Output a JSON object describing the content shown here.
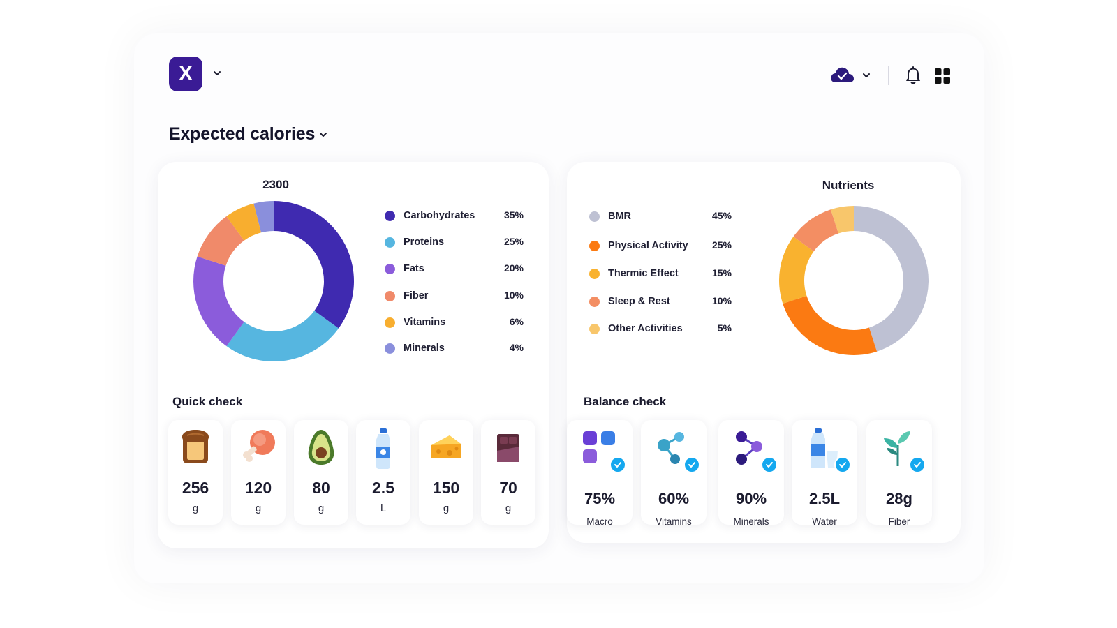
{
  "header": {
    "logo_letter": "X",
    "icons": [
      "chevron-down-icon",
      "cloud-check-icon",
      "bell-icon",
      "grid-icon"
    ]
  },
  "page_title": "Expected calories",
  "calories": {
    "total": "2300",
    "legend": [
      {
        "name": "Carbohydrates",
        "pct": "35%",
        "color": "#3f2ab0"
      },
      {
        "name": "Proteins",
        "pct": "25%",
        "color": "#56b6e0"
      },
      {
        "name": "Fats",
        "pct": "20%",
        "color": "#8b5cdb"
      },
      {
        "name": "Fiber",
        "pct": "10%",
        "color": "#f08a6a"
      },
      {
        "name": "Vitamins",
        "pct": "6%",
        "color": "#f8ae2f"
      },
      {
        "name": "Minerals",
        "pct": "4%",
        "color": "#8a8fdc"
      }
    ]
  },
  "nutrients": {
    "title": "Nutrients",
    "legend": [
      {
        "name": "BMR",
        "pct": "45%",
        "color": "#bec1d3"
      },
      {
        "name": "Physical Activity",
        "pct": "25%",
        "color": "#fb7a12"
      },
      {
        "name": "Thermic Effect",
        "pct": "15%",
        "color": "#f9b22f"
      },
      {
        "name": "Sleep & Rest",
        "pct": "10%",
        "color": "#f38e63"
      },
      {
        "name": "Other Activities",
        "pct": "5%",
        "color": "#f8c66b"
      }
    ]
  },
  "quick_check": {
    "title": "Quick check",
    "items": [
      {
        "value": "256",
        "unit": "g",
        "icon": "bread-icon"
      },
      {
        "value": "120",
        "unit": "g",
        "icon": "chicken-leg-icon"
      },
      {
        "value": "80",
        "unit": "g",
        "icon": "avocado-icon"
      },
      {
        "value": "2.5",
        "unit": "L",
        "icon": "water-bottle-icon"
      },
      {
        "value": "150",
        "unit": "g",
        "icon": "cheese-icon"
      },
      {
        "value": "70",
        "unit": "g",
        "icon": "chocolate-icon"
      }
    ]
  },
  "balance_check": {
    "title": "Balance check",
    "items": [
      {
        "value": "75%",
        "label": "Macro",
        "icon": "macro-blocks-icon"
      },
      {
        "value": "60%",
        "label": "Vitamins",
        "icon": "molecule-icon"
      },
      {
        "value": "90%",
        "label": "Minerals",
        "icon": "molecule-purple-icon"
      },
      {
        "value": "2.5L",
        "label": "Water",
        "icon": "water-glass-icon"
      },
      {
        "value": "28g",
        "label": "Fiber",
        "icon": "sprout-icon"
      }
    ]
  },
  "chart_data": [
    {
      "type": "pie",
      "title": "2300",
      "categories": [
        "Carbohydrates",
        "Proteins",
        "Fats",
        "Fiber",
        "Vitamins",
        "Minerals"
      ],
      "values": [
        35,
        25,
        20,
        10,
        6,
        4
      ]
    },
    {
      "type": "pie",
      "title": "Nutrients",
      "categories": [
        "BMR",
        "Physical Activity",
        "Thermic Effect",
        "Sleep & Rest",
        "Other Activities"
      ],
      "values": [
        45,
        25,
        15,
        10,
        5
      ]
    }
  ]
}
